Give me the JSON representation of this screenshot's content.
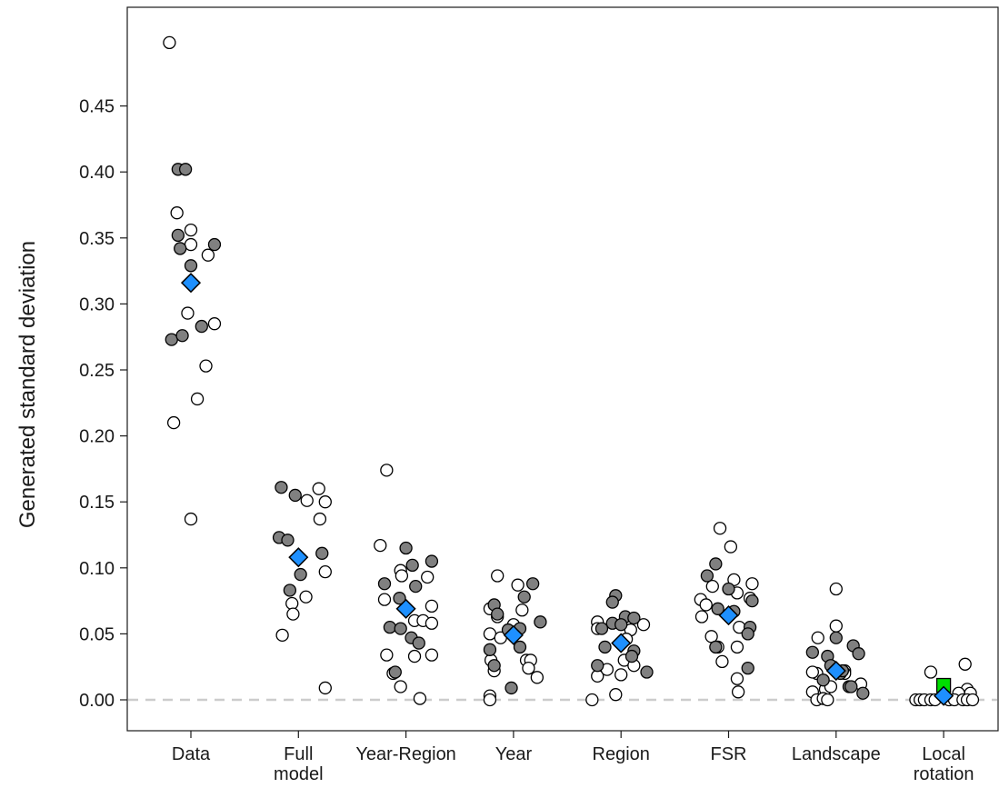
{
  "chart_data": {
    "type": "scatter",
    "title": "",
    "xlabel": "",
    "ylabel": "Generated standard deviation",
    "ylim": [
      -0.025,
      0.52
    ],
    "yticks": [
      "0.00",
      "0.05",
      "0.10",
      "0.15",
      "0.20",
      "0.25",
      "0.30",
      "0.35",
      "0.40",
      "0.45"
    ],
    "grid": false,
    "legend": "none",
    "reference_line": {
      "y": 0.0,
      "style": "dashed",
      "color": "#cccccc"
    },
    "colors": {
      "filled": "#808080",
      "open": "#ffffff",
      "mean": "#1e90ff",
      "special": "#00dd00",
      "outline": "#000000"
    },
    "categories": [
      {
        "label": "Data",
        "filled": [
          [
            -0.12,
            0.402
          ],
          [
            -0.05,
            0.402
          ],
          [
            -0.12,
            0.352
          ],
          [
            -0.1,
            0.342
          ],
          [
            0.0,
            0.329
          ],
          [
            0.1,
            0.283
          ],
          [
            -0.18,
            0.273
          ],
          [
            -0.08,
            0.276
          ],
          [
            0.22,
            0.345
          ]
        ],
        "open": [
          [
            -0.2,
            0.498
          ],
          [
            -0.13,
            0.369
          ],
          [
            0.0,
            0.356
          ],
          [
            0.0,
            0.345
          ],
          [
            0.16,
            0.337
          ],
          [
            0.22,
            0.285
          ],
          [
            -0.03,
            0.293
          ],
          [
            0.14,
            0.253
          ],
          [
            0.06,
            0.228
          ],
          [
            -0.16,
            0.21
          ],
          [
            0.0,
            0.137
          ]
        ],
        "mean": 0.316
      },
      {
        "label": "Full model",
        "filled": [
          [
            -0.16,
            0.161
          ],
          [
            -0.03,
            0.155
          ],
          [
            -0.18,
            0.123
          ],
          [
            -0.1,
            0.121
          ],
          [
            0.02,
            0.095
          ],
          [
            -0.08,
            0.083
          ],
          [
            0.22,
            0.111
          ]
        ],
        "open": [
          [
            0.08,
            0.151
          ],
          [
            0.19,
            0.16
          ],
          [
            0.25,
            0.15
          ],
          [
            0.2,
            0.137
          ],
          [
            0.25,
            0.097
          ],
          [
            0.07,
            0.078
          ],
          [
            -0.06,
            0.073
          ],
          [
            -0.05,
            0.065
          ],
          [
            -0.15,
            0.049
          ],
          [
            0.25,
            0.009
          ]
        ],
        "mean": 0.108
      },
      {
        "label": "Year-Region",
        "filled": [
          [
            -0.2,
            0.088
          ],
          [
            -0.06,
            0.077
          ],
          [
            0.0,
            0.115
          ],
          [
            0.06,
            0.102
          ],
          [
            0.24,
            0.105
          ],
          [
            -0.15,
            0.055
          ],
          [
            -0.05,
            0.054
          ],
          [
            0.05,
            0.047
          ],
          [
            0.09,
            0.086
          ],
          [
            0.12,
            0.043
          ],
          [
            -0.1,
            0.021
          ]
        ],
        "open": [
          [
            -0.18,
            0.174
          ],
          [
            -0.24,
            0.117
          ],
          [
            -0.05,
            0.098
          ],
          [
            -0.04,
            0.094
          ],
          [
            0.2,
            0.093
          ],
          [
            0.24,
            0.071
          ],
          [
            -0.2,
            0.076
          ],
          [
            0.08,
            0.06
          ],
          [
            0.16,
            0.06
          ],
          [
            0.24,
            0.058
          ],
          [
            0.08,
            0.033
          ],
          [
            -0.18,
            0.034
          ],
          [
            0.24,
            0.034
          ],
          [
            -0.12,
            0.02
          ],
          [
            -0.05,
            0.01
          ],
          [
            0.13,
            0.001
          ]
        ],
        "mean": 0.069
      },
      {
        "label": "Year",
        "filled": [
          [
            -0.18,
            0.072
          ],
          [
            -0.15,
            0.065
          ],
          [
            0.1,
            0.078
          ],
          [
            0.18,
            0.088
          ],
          [
            0.25,
            0.059
          ],
          [
            -0.05,
            0.053
          ],
          [
            0.06,
            0.054
          ],
          [
            0.06,
            0.04
          ],
          [
            -0.22,
            0.038
          ],
          [
            -0.18,
            0.026
          ],
          [
            -0.02,
            0.009
          ]
        ],
        "open": [
          [
            -0.15,
            0.094
          ],
          [
            0.04,
            0.087
          ],
          [
            -0.22,
            0.069
          ],
          [
            -0.15,
            0.063
          ],
          [
            0.08,
            0.068
          ],
          [
            -0.22,
            0.05
          ],
          [
            -0.12,
            0.047
          ],
          [
            0.0,
            0.057
          ],
          [
            0.12,
            0.03
          ],
          [
            0.16,
            0.03
          ],
          [
            -0.21,
            0.03
          ],
          [
            -0.18,
            0.022
          ],
          [
            0.14,
            0.024
          ],
          [
            0.22,
            0.017
          ],
          [
            -0.22,
            0.003
          ],
          [
            -0.22,
            0.0
          ]
        ],
        "mean": 0.049
      },
      {
        "label": "Region",
        "filled": [
          [
            -0.05,
            0.079
          ],
          [
            -0.08,
            0.074
          ],
          [
            0.04,
            0.063
          ],
          [
            0.12,
            0.062
          ],
          [
            -0.08,
            0.058
          ],
          [
            0.0,
            0.057
          ],
          [
            -0.18,
            0.054
          ],
          [
            -0.22,
            0.026
          ],
          [
            0.12,
            0.037
          ],
          [
            -0.15,
            0.04
          ],
          [
            0.1,
            0.033
          ],
          [
            0.24,
            0.021
          ]
        ],
        "open": [
          [
            -0.22,
            0.059
          ],
          [
            -0.22,
            0.054
          ],
          [
            0.21,
            0.057
          ],
          [
            0.09,
            0.053
          ],
          [
            0.05,
            0.046
          ],
          [
            -0.22,
            0.018
          ],
          [
            -0.13,
            0.023
          ],
          [
            0.0,
            0.019
          ],
          [
            0.03,
            0.03
          ],
          [
            0.12,
            0.026
          ],
          [
            -0.05,
            0.004
          ],
          [
            -0.27,
            0.0
          ]
        ],
        "mean": 0.043
      },
      {
        "label": "FSR",
        "filled": [
          [
            -0.12,
            0.103
          ],
          [
            -0.2,
            0.094
          ],
          [
            0.0,
            0.084
          ],
          [
            -0.1,
            0.069
          ],
          [
            0.05,
            0.067
          ],
          [
            0.22,
            0.075
          ],
          [
            -0.12,
            0.04
          ],
          [
            0.2,
            0.055
          ],
          [
            0.18,
            0.05
          ],
          [
            0.18,
            0.024
          ]
        ],
        "open": [
          [
            -0.08,
            0.13
          ],
          [
            0.02,
            0.116
          ],
          [
            0.05,
            0.091
          ],
          [
            -0.15,
            0.086
          ],
          [
            0.22,
            0.088
          ],
          [
            -0.26,
            0.076
          ],
          [
            -0.21,
            0.072
          ],
          [
            0.08,
            0.081
          ],
          [
            0.2,
            0.077
          ],
          [
            -0.25,
            0.063
          ],
          [
            0.1,
            0.055
          ],
          [
            -0.16,
            0.048
          ],
          [
            0.08,
            0.04
          ],
          [
            -0.1,
            0.04
          ],
          [
            -0.06,
            0.029
          ],
          [
            0.08,
            0.016
          ],
          [
            0.09,
            0.006
          ]
        ],
        "mean": 0.064
      },
      {
        "label": "Landscape",
        "filled": [
          [
            -0.22,
            0.036
          ],
          [
            0.0,
            0.047
          ],
          [
            0.16,
            0.041
          ],
          [
            0.21,
            0.035
          ],
          [
            -0.08,
            0.033
          ],
          [
            -0.05,
            0.026
          ],
          [
            0.04,
            0.02
          ],
          [
            -0.12,
            0.015
          ],
          [
            0.06,
            0.022
          ],
          [
            0.12,
            0.01
          ],
          [
            0.14,
            0.01
          ],
          [
            0.25,
            0.005
          ]
        ],
        "open": [
          [
            0.0,
            0.084
          ],
          [
            0.0,
            0.056
          ],
          [
            -0.17,
            0.047
          ],
          [
            -0.18,
            0.02
          ],
          [
            -0.22,
            0.021
          ],
          [
            0.08,
            0.022
          ],
          [
            0.08,
            0.02
          ],
          [
            -0.1,
            0.008
          ],
          [
            -0.05,
            0.01
          ],
          [
            0.23,
            0.012
          ],
          [
            -0.22,
            0.006
          ],
          [
            -0.18,
            0.0
          ],
          [
            -0.12,
            0.001
          ],
          [
            -0.08,
            0.0
          ]
        ],
        "mean": 0.022
      },
      {
        "label": "Local rotation",
        "filled": [],
        "open": [
          [
            -0.12,
            0.021
          ],
          [
            0.2,
            0.027
          ],
          [
            0.22,
            0.008
          ],
          [
            0.25,
            0.005
          ],
          [
            0.14,
            0.005
          ],
          [
            -0.26,
            0.0
          ],
          [
            -0.22,
            0.0
          ],
          [
            -0.18,
            0.0
          ],
          [
            -0.12,
            0.0
          ],
          [
            -0.08,
            0.0
          ],
          [
            0.05,
            0.0
          ],
          [
            0.1,
            0.0
          ],
          [
            0.18,
            0.0
          ],
          [
            0.22,
            0.0
          ],
          [
            0.27,
            0.0
          ]
        ],
        "special": [
          [
            0.0,
            0.011
          ]
        ],
        "mean": 0.003
      }
    ]
  }
}
